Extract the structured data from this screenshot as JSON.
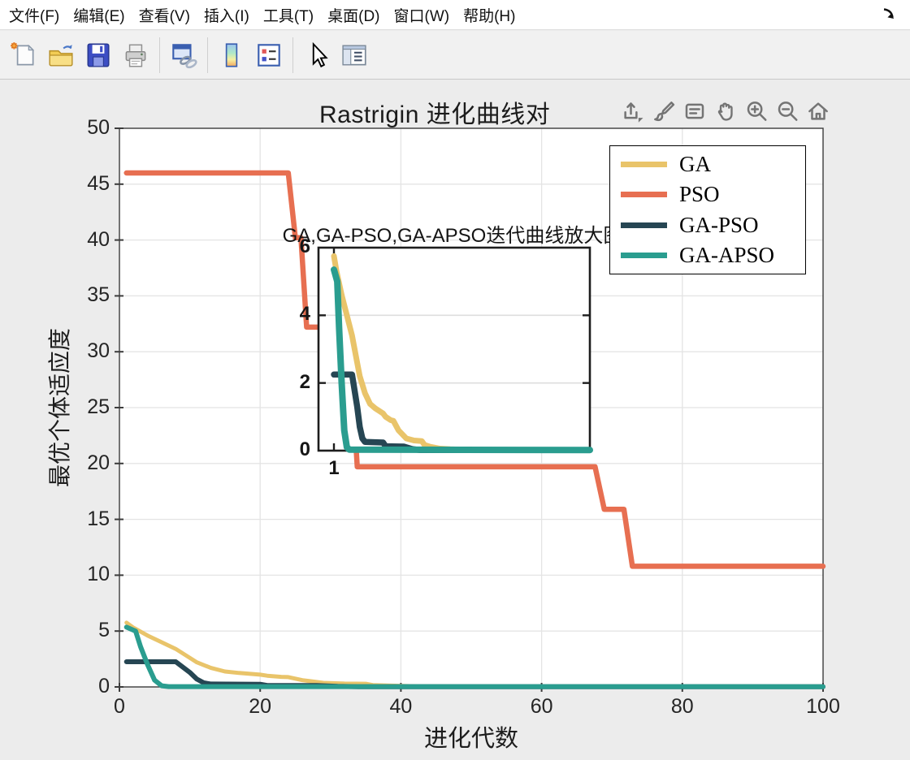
{
  "menubar": {
    "items": [
      "文件(F)",
      "编辑(E)",
      "查看(V)",
      "插入(I)",
      "工具(T)",
      "桌面(D)",
      "窗口(W)",
      "帮助(H)"
    ]
  },
  "window": {
    "dock_icon": "dock-arrow"
  },
  "toolbar": {
    "icons": [
      "new-document",
      "open-folder",
      "save-floppy",
      "print",
      "link-plots",
      "insert-colorbar",
      "insert-legend",
      "edit-plot-pointer",
      "plot-browser"
    ]
  },
  "axes_toolbar": {
    "icons": [
      "export",
      "brush",
      "datatips",
      "pan-hand",
      "zoom-in",
      "zoom-out",
      "home-restore-view"
    ]
  },
  "figure": {
    "title": "Rastrigin 进化曲线对"
  },
  "legend": {
    "items": [
      "GA",
      "PSO",
      "GA-PSO",
      "GA-APSO"
    ]
  },
  "colors": {
    "figure_bg": "#ececec",
    "plot_bg": "#ffffff",
    "grid": "#e4e4e4",
    "axis": "#3c3c3c",
    "ga": "#E9C46A",
    "pso": "#E76F51",
    "ga_pso": "#264653",
    "ga_apso": "#2A9D8F"
  },
  "chart_data": {
    "type": "line",
    "title": "Rastrigin 进化曲线对",
    "xlabel": "进化代数",
    "ylabel": "最优个体适应度",
    "xlim": [
      0,
      100
    ],
    "ylim": [
      0,
      50
    ],
    "xticks": [
      0,
      20,
      40,
      60,
      80,
      100
    ],
    "yticks": [
      0,
      5,
      10,
      15,
      20,
      25,
      30,
      35,
      40,
      45,
      50
    ],
    "grid": true,
    "legend_position": "top-right",
    "series": [
      {
        "name": "GA",
        "color": "#E9C46A",
        "points": [
          [
            1,
            5.75
          ],
          [
            2,
            5.3
          ],
          [
            4,
            4.6
          ],
          [
            6,
            4.0
          ],
          [
            8,
            3.4
          ],
          [
            10,
            2.6
          ],
          [
            11,
            2.2
          ],
          [
            13,
            1.7
          ],
          [
            15,
            1.38
          ],
          [
            17,
            1.25
          ],
          [
            20,
            1.1
          ],
          [
            21,
            1.0
          ],
          [
            23,
            0.9
          ],
          [
            24,
            0.88
          ],
          [
            26,
            0.6
          ],
          [
            29,
            0.36
          ],
          [
            32,
            0.3
          ],
          [
            35,
            0.28
          ],
          [
            36,
            0.17
          ],
          [
            38,
            0.12
          ],
          [
            42,
            0.06
          ],
          [
            46,
            0.04
          ],
          [
            50,
            0.03
          ],
          [
            55,
            0.02
          ],
          [
            100,
            0.015
          ]
        ]
      },
      {
        "name": "PSO",
        "color": "#E76F51",
        "points": [
          [
            1,
            46
          ],
          [
            24,
            46
          ],
          [
            25,
            40.2
          ],
          [
            25.8,
            40.2
          ],
          [
            26.6,
            32.2
          ],
          [
            32.6,
            32.2
          ],
          [
            33.8,
            19.7
          ],
          [
            67.6,
            19.7
          ],
          [
            68.9,
            15.9
          ],
          [
            71.7,
            15.9
          ],
          [
            72.9,
            10.8
          ],
          [
            100,
            10.8
          ]
        ]
      },
      {
        "name": "GA-PSO",
        "color": "#264653",
        "points": [
          [
            1,
            2.25
          ],
          [
            8,
            2.25
          ],
          [
            10,
            1.3
          ],
          [
            11,
            0.7
          ],
          [
            12,
            0.36
          ],
          [
            13,
            0.26
          ],
          [
            20,
            0.24
          ],
          [
            21,
            0.13
          ],
          [
            28,
            0.12
          ],
          [
            31,
            0.05
          ],
          [
            34,
            0.02
          ],
          [
            100,
            0.02
          ]
        ]
      },
      {
        "name": "GA-APSO",
        "color": "#2A9D8F",
        "points": [
          [
            1,
            5.35
          ],
          [
            2.3,
            5.0
          ],
          [
            3,
            3.6
          ],
          [
            4,
            2.0
          ],
          [
            5,
            0.6
          ],
          [
            6,
            0.1
          ],
          [
            7,
            0.03
          ],
          [
            100,
            0.02
          ]
        ]
      }
    ],
    "inset": {
      "title": "GA,GA-PSO,GA-APSO迭代曲线放大图",
      "xlim": [
        1,
        100
      ],
      "ylim": [
        0,
        6
      ],
      "xticks": [
        1
      ],
      "yticks": [
        0,
        2,
        4,
        6
      ],
      "series_shown": [
        "GA",
        "GA-PSO",
        "GA-APSO"
      ]
    }
  }
}
